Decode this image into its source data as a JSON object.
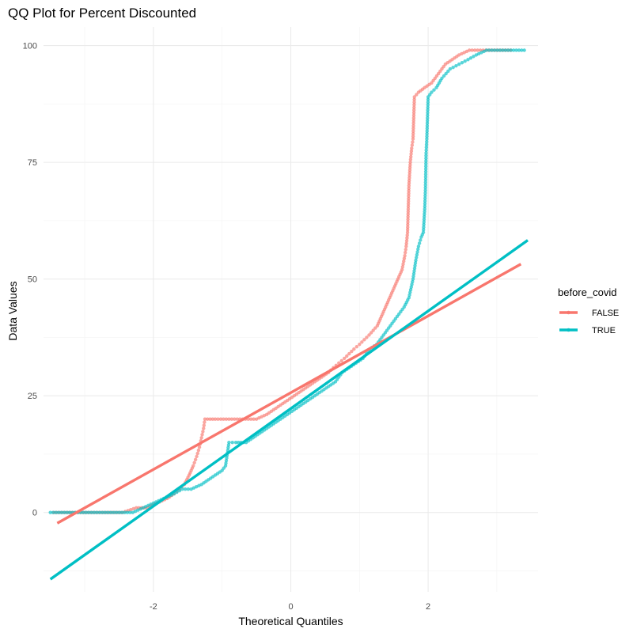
{
  "chart_data": {
    "type": "scatter",
    "title": "QQ Plot for Percent Discounted",
    "xlabel": "Theoretical Quantiles",
    "ylabel": "Data Values",
    "xlim": [
      -3.6,
      3.6
    ],
    "ylim": [
      -17,
      104
    ],
    "x_ticks": [
      -2,
      0,
      2
    ],
    "y_ticks": [
      0,
      25,
      50,
      75,
      100
    ],
    "grid": true,
    "legend": {
      "title": "before_covid",
      "placement": "right"
    },
    "series": [
      {
        "name": "FALSE",
        "color": "#f8766d",
        "points": [
          [
            -3.45,
            0
          ],
          [
            -3.25,
            0
          ],
          [
            -2.95,
            0
          ],
          [
            -2.75,
            0
          ],
          [
            -2.6,
            0
          ],
          [
            -2.45,
            0
          ],
          [
            -2.25,
            1
          ],
          [
            -2.1,
            1
          ],
          [
            -1.95,
            2
          ],
          [
            -1.8,
            3
          ],
          [
            -1.7,
            4
          ],
          [
            -1.62,
            5
          ],
          [
            -1.55,
            6
          ],
          [
            -1.48,
            8
          ],
          [
            -1.42,
            10
          ],
          [
            -1.37,
            12
          ],
          [
            -1.33,
            14
          ],
          [
            -1.3,
            16
          ],
          [
            -1.27,
            18
          ],
          [
            -1.25,
            20
          ],
          [
            -1.1,
            20
          ],
          [
            -0.9,
            20
          ],
          [
            -0.7,
            20
          ],
          [
            -0.5,
            20
          ],
          [
            -0.35,
            21
          ],
          [
            -0.25,
            22
          ],
          [
            -0.15,
            23
          ],
          [
            -0.05,
            24
          ],
          [
            0.05,
            25
          ],
          [
            0.15,
            26
          ],
          [
            0.25,
            27
          ],
          [
            0.35,
            28
          ],
          [
            0.45,
            29
          ],
          [
            0.55,
            30
          ],
          [
            0.62,
            31
          ],
          [
            0.7,
            32
          ],
          [
            0.78,
            33
          ],
          [
            0.85,
            34
          ],
          [
            0.92,
            35
          ],
          [
            1.0,
            36
          ],
          [
            1.07,
            37
          ],
          [
            1.14,
            38
          ],
          [
            1.2,
            39
          ],
          [
            1.26,
            40
          ],
          [
            1.32,
            42
          ],
          [
            1.38,
            44
          ],
          [
            1.44,
            46
          ],
          [
            1.5,
            48
          ],
          [
            1.56,
            50
          ],
          [
            1.62,
            52
          ],
          [
            1.66,
            55
          ],
          [
            1.68,
            57
          ],
          [
            1.7,
            60
          ],
          [
            1.72,
            70
          ],
          [
            1.74,
            75
          ],
          [
            1.76,
            78
          ],
          [
            1.78,
            80
          ],
          [
            1.8,
            89
          ],
          [
            1.86,
            90
          ],
          [
            1.95,
            91
          ],
          [
            2.05,
            92
          ],
          [
            2.15,
            94
          ],
          [
            2.25,
            96
          ],
          [
            2.35,
            97
          ],
          [
            2.45,
            98
          ],
          [
            2.6,
            99
          ],
          [
            2.8,
            99
          ],
          [
            3.0,
            99
          ],
          [
            3.2,
            99
          ]
        ],
        "fit_line": {
          "x": [
            -3.4,
            3.35
          ],
          "y": [
            -2.3,
            53.2
          ]
        }
      },
      {
        "name": "TRUE",
        "color": "#00bfc4",
        "points": [
          [
            -3.5,
            0
          ],
          [
            -3.3,
            0
          ],
          [
            -3.1,
            0
          ],
          [
            -2.9,
            0
          ],
          [
            -2.7,
            0
          ],
          [
            -2.5,
            0
          ],
          [
            -2.3,
            0
          ],
          [
            -2.15,
            1
          ],
          [
            -2.0,
            2
          ],
          [
            -1.85,
            3
          ],
          [
            -1.7,
            4
          ],
          [
            -1.58,
            5
          ],
          [
            -1.45,
            5
          ],
          [
            -1.3,
            6
          ],
          [
            -1.2,
            7
          ],
          [
            -1.1,
            8
          ],
          [
            -1.0,
            9
          ],
          [
            -0.95,
            10
          ],
          [
            -0.9,
            15
          ],
          [
            -0.8,
            15
          ],
          [
            -0.65,
            15
          ],
          [
            -0.55,
            16
          ],
          [
            -0.45,
            17
          ],
          [
            -0.35,
            18
          ],
          [
            -0.25,
            19
          ],
          [
            -0.15,
            20
          ],
          [
            -0.05,
            21
          ],
          [
            0.05,
            22
          ],
          [
            0.15,
            23
          ],
          [
            0.25,
            24
          ],
          [
            0.35,
            25
          ],
          [
            0.45,
            26
          ],
          [
            0.55,
            27
          ],
          [
            0.65,
            28
          ],
          [
            0.75,
            30
          ],
          [
            0.85,
            31
          ],
          [
            0.95,
            32
          ],
          [
            1.05,
            33
          ],
          [
            1.15,
            35
          ],
          [
            1.25,
            36
          ],
          [
            1.35,
            38
          ],
          [
            1.45,
            40
          ],
          [
            1.55,
            42
          ],
          [
            1.65,
            44
          ],
          [
            1.72,
            46
          ],
          [
            1.78,
            50
          ],
          [
            1.82,
            54
          ],
          [
            1.86,
            57
          ],
          [
            1.9,
            59
          ],
          [
            1.93,
            60
          ],
          [
            1.95,
            65
          ],
          [
            1.96,
            69
          ],
          [
            1.97,
            77
          ],
          [
            1.98,
            80
          ],
          [
            2.0,
            89
          ],
          [
            2.05,
            90
          ],
          [
            2.12,
            91
          ],
          [
            2.2,
            93
          ],
          [
            2.32,
            95
          ],
          [
            2.45,
            96
          ],
          [
            2.58,
            97
          ],
          [
            2.7,
            98
          ],
          [
            2.85,
            99
          ],
          [
            3.05,
            99
          ],
          [
            3.4,
            99
          ]
        ],
        "fit_line": {
          "x": [
            -3.5,
            3.45
          ],
          "y": [
            -14.3,
            58.3
          ]
        }
      }
    ]
  }
}
